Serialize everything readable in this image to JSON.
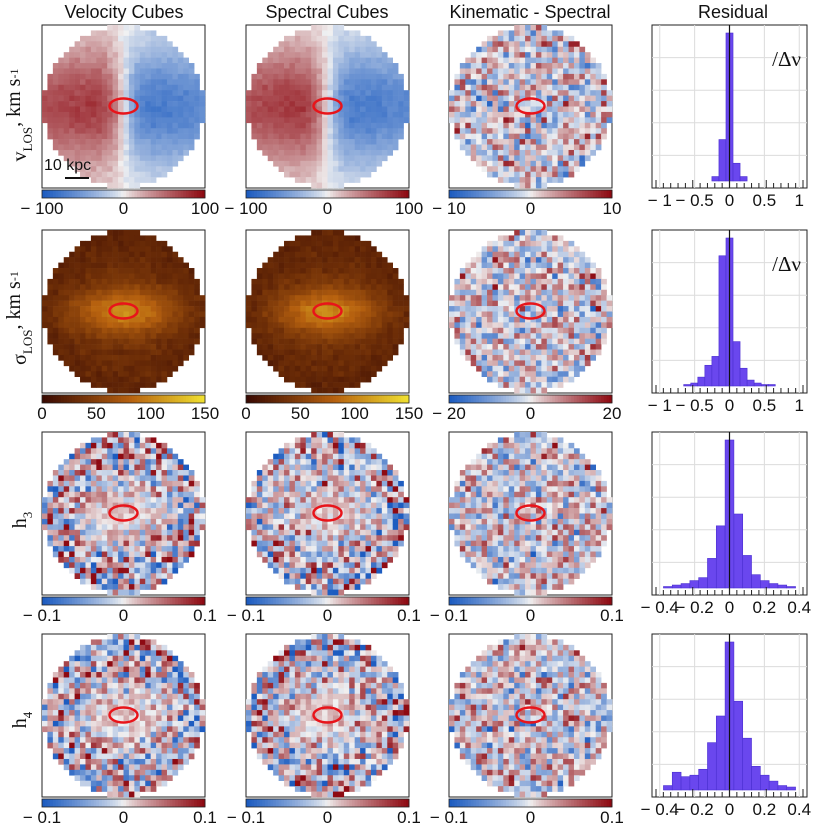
{
  "figure": {
    "column_titles": [
      "Velocity Cubes",
      "Spectral Cubes",
      "Kinematic - Spectral",
      "Residual"
    ],
    "row_labels": [
      {
        "main": "v",
        "sub": "LOS",
        "unit": ", km s",
        "sup": "-1"
      },
      {
        "main": "σ",
        "sub": "LOS",
        "unit": ", km s",
        "sup": "-1"
      },
      {
        "main": "h",
        "sub": "3",
        "unit": "",
        "sup": ""
      },
      {
        "main": "h",
        "sub": "4",
        "unit": "",
        "sup": ""
      }
    ],
    "scale_bar_label": "10 kpc",
    "residual_annotation": "/Δν",
    "colors": {
      "histogram_fill": "#6a47ee",
      "histogram_edge": "#4a2fd0",
      "ellipse": "#e8141a",
      "diverging_low": "#1d5cc0",
      "diverging_mid": "#f2f2f2",
      "diverging_high": "#8e0a12",
      "sigma_low": "#3a0a02",
      "sigma_mid": "#b8620f",
      "sigma_high": "#f0e030"
    }
  },
  "chart_data": [
    {
      "type": "heatmap",
      "title": "Velocity Cubes",
      "row": "v_LOS",
      "colormap": "diverging",
      "clim": [
        -100,
        100
      ],
      "colorbar_ticks": [
        "− 100",
        "0",
        "100"
      ],
      "pattern": "rotation"
    },
    {
      "type": "heatmap",
      "title": "Spectral Cubes",
      "row": "v_LOS",
      "colormap": "diverging",
      "clim": [
        -100,
        100
      ],
      "colorbar_ticks": [
        "− 100",
        "0",
        "100"
      ],
      "pattern": "rotation"
    },
    {
      "type": "heatmap",
      "title": "Kinematic - Spectral",
      "row": "v_LOS",
      "colormap": "diverging",
      "clim": [
        -10,
        10
      ],
      "colorbar_ticks": [
        "− 10",
        "0",
        "10"
      ],
      "pattern": "noise"
    },
    {
      "type": "bar",
      "title": "Residual",
      "row": "v_LOS",
      "xlim": [
        -1.1,
        1.1
      ],
      "xticks": [
        "− 1",
        "− 0.5",
        "0",
        "0.5",
        "1"
      ],
      "annotation": "/Δν",
      "bins": [
        -0.2,
        -0.1,
        0,
        0.1,
        0.2
      ],
      "values": [
        3,
        28,
        100,
        12,
        3
      ]
    },
    {
      "type": "heatmap",
      "row": "sigma_LOS",
      "colormap": "sigma",
      "clim": [
        0,
        150
      ],
      "colorbar_ticks": [
        "0",
        "50",
        "100",
        "150"
      ],
      "pattern": "sigma"
    },
    {
      "type": "heatmap",
      "row": "sigma_LOS",
      "colormap": "sigma",
      "clim": [
        0,
        150
      ],
      "colorbar_ticks": [
        "0",
        "50",
        "100",
        "150"
      ],
      "pattern": "sigma"
    },
    {
      "type": "heatmap",
      "row": "sigma_LOS",
      "colormap": "diverging",
      "clim": [
        -20,
        20
      ],
      "colorbar_ticks": [
        "− 20",
        "0",
        "20"
      ],
      "pattern": "noise"
    },
    {
      "type": "bar",
      "row": "sigma_LOS",
      "xlim": [
        -1.1,
        1.1
      ],
      "xticks": [
        "− 1",
        "− 0.5",
        "0",
        "0.5",
        "1"
      ],
      "annotation": "/Δν",
      "bins": [
        -0.6,
        -0.5,
        -0.4,
        -0.3,
        -0.2,
        -0.1,
        0,
        0.1,
        0.2,
        0.3,
        0.4,
        0.5,
        0.6
      ],
      "values": [
        1,
        2,
        6,
        14,
        20,
        88,
        100,
        30,
        12,
        4,
        2,
        1,
        1
      ]
    },
    {
      "type": "heatmap",
      "row": "h3",
      "colormap": "diverging",
      "clim": [
        -0.1,
        0.1
      ],
      "colorbar_ticks": [
        "− 0.1",
        "0",
        "0.1"
      ],
      "pattern": "noise_core"
    },
    {
      "type": "heatmap",
      "row": "h3",
      "colormap": "diverging",
      "clim": [
        -0.1,
        0.1
      ],
      "colorbar_ticks": [
        "− 0.1",
        "0",
        "0.1"
      ],
      "pattern": "noise_core"
    },
    {
      "type": "heatmap",
      "row": "h3",
      "colormap": "diverging",
      "clim": [
        -0.1,
        0.1
      ],
      "colorbar_ticks": [
        "− 0.1",
        "0",
        "0.1"
      ],
      "pattern": "noise"
    },
    {
      "type": "bar",
      "row": "h3",
      "xlim": [
        -0.44,
        0.44
      ],
      "xticks": [
        "− 0.4",
        "− 0.2",
        "0",
        "0.2",
        "0.4"
      ],
      "bins": [
        -0.35,
        -0.3,
        -0.25,
        -0.2,
        -0.15,
        -0.1,
        -0.05,
        0,
        0.05,
        0.1,
        0.15,
        0.2,
        0.25,
        0.3,
        0.35
      ],
      "values": [
        1,
        2,
        3,
        5,
        7,
        20,
        42,
        100,
        50,
        22,
        9,
        5,
        3,
        2,
        1
      ]
    },
    {
      "type": "heatmap",
      "row": "h4",
      "colormap": "diverging",
      "clim": [
        -0.1,
        0.1
      ],
      "colorbar_ticks": [
        "− 0.1",
        "0",
        "0.1"
      ],
      "pattern": "noise_core"
    },
    {
      "type": "heatmap",
      "row": "h4",
      "colormap": "diverging",
      "clim": [
        -0.1,
        0.1
      ],
      "colorbar_ticks": [
        "− 0.1",
        "0",
        "0.1"
      ],
      "pattern": "noise_core"
    },
    {
      "type": "heatmap",
      "row": "h4",
      "colormap": "diverging",
      "clim": [
        -0.1,
        0.1
      ],
      "colorbar_ticks": [
        "− 0.1",
        "0",
        "0.1"
      ],
      "pattern": "noise"
    },
    {
      "type": "bar",
      "row": "h4",
      "xlim": [
        -0.44,
        0.44
      ],
      "xticks": [
        "− 0.4",
        "− 0.2",
        "0",
        "0.2",
        "0.4"
      ],
      "bins": [
        -0.35,
        -0.3,
        -0.25,
        -0.2,
        -0.15,
        -0.1,
        -0.05,
        0,
        0.05,
        0.1,
        0.15,
        0.2,
        0.25,
        0.3,
        0.35
      ],
      "values": [
        3,
        12,
        9,
        10,
        14,
        32,
        50,
        100,
        60,
        35,
        16,
        10,
        6,
        3,
        2
      ]
    }
  ]
}
